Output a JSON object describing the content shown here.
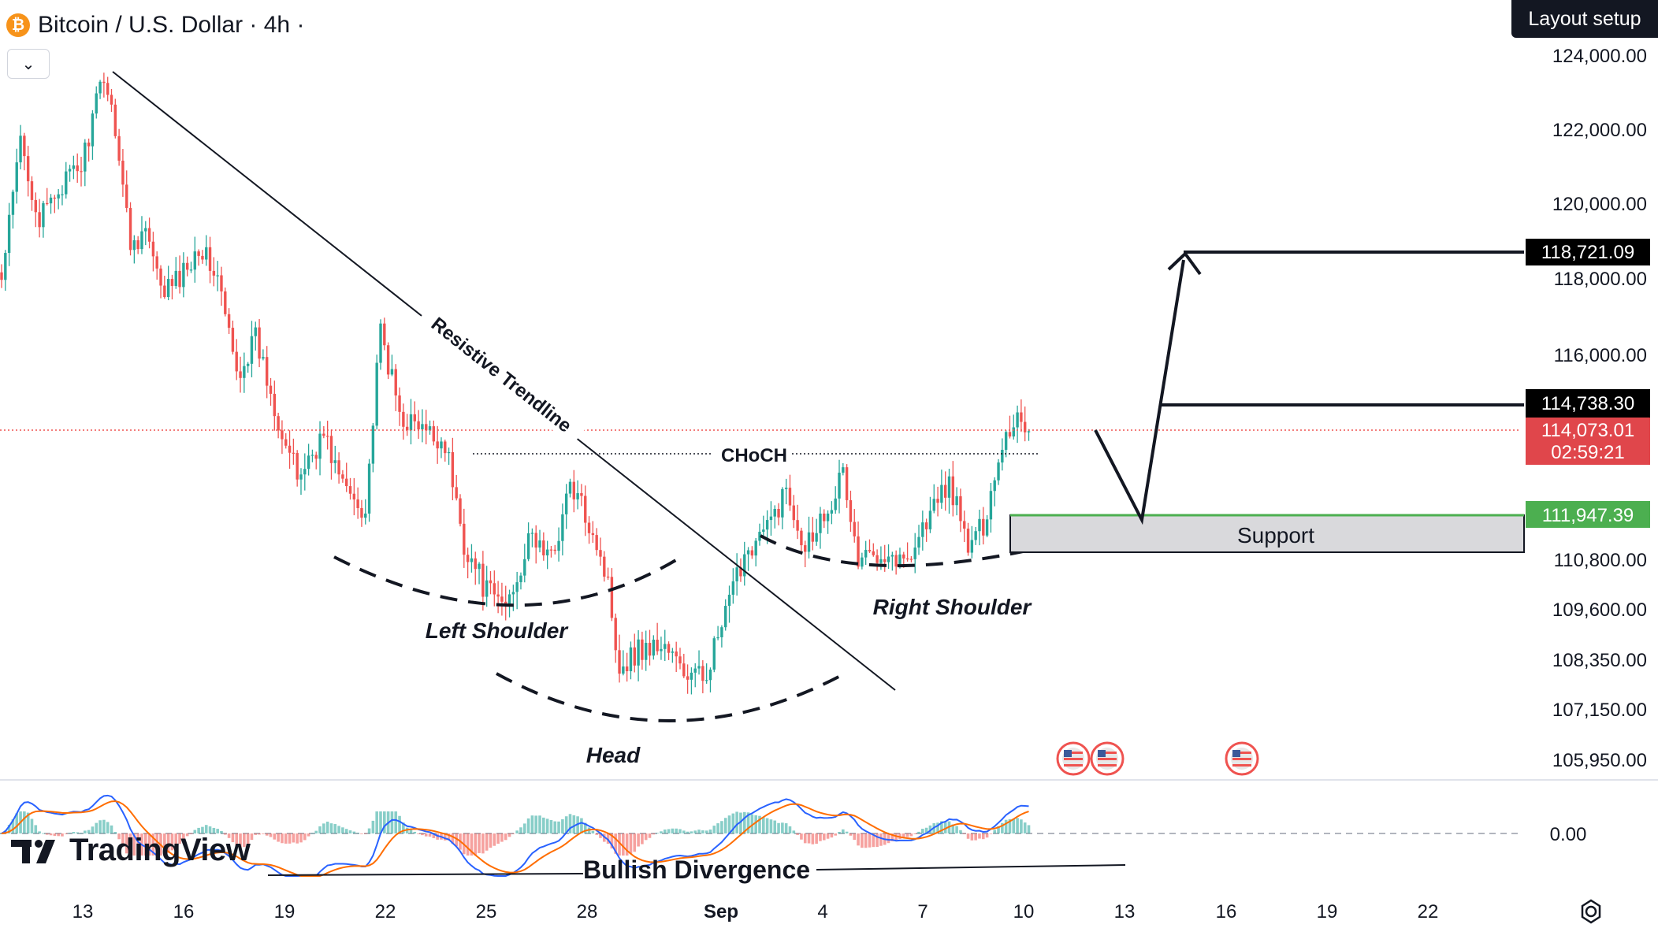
{
  "header": {
    "symbol_icon": "bitcoin-icon",
    "title": "Bitcoin / U.S. Dollar · 4h ·",
    "layout_button": "Layout setup",
    "collapse_icon": "chevron-down-icon"
  },
  "watermark": "TradingView",
  "colors": {
    "up": "#26a69a",
    "down": "#ef5350",
    "accent_green": "#4caf50",
    "support_fill": "#d9d9dc"
  },
  "chart_data": {
    "type": "candlestick",
    "interval": "4h",
    "price_axis": {
      "ticks": [
        124000,
        122000,
        120000,
        118000,
        116000,
        114738.3,
        110800,
        109600,
        108350,
        107150,
        105950
      ],
      "tick_labels": [
        "124,000.00",
        "122,000.00",
        "120,000.00",
        "118,000.00",
        "116,000.00",
        "110,800.00",
        "109,600.00",
        "108,350.00",
        "107,150.00",
        "105,950.00"
      ]
    },
    "price_labels": {
      "target": "118,721.09",
      "resistance": "114,738.30",
      "last_price": "114,073.01",
      "countdown": "02:59:21",
      "support": "111,947.39"
    },
    "time_axis": {
      "labels": [
        "13",
        "16",
        "19",
        "22",
        "25",
        "28",
        "Sep",
        "4",
        "7",
        "10",
        "13",
        "16",
        "19",
        "22"
      ],
      "bold_label": "Sep"
    },
    "annotations": {
      "trendline": "Resistive Trendline",
      "choch": "CHoCH",
      "left_shoulder": "Left Shoulder",
      "head": "Head",
      "right_shoulder": "Right Shoulder",
      "support": "Support",
      "divergence": "Bullish Divergence"
    },
    "anchors": [
      {
        "i": 0,
        "p": 117900
      },
      {
        "i": 5,
        "p": 121700
      },
      {
        "i": 10,
        "p": 119500
      },
      {
        "i": 15,
        "p": 120400
      },
      {
        "i": 21,
        "p": 121000
      },
      {
        "i": 27,
        "p": 123500
      },
      {
        "i": 30,
        "p": 122100
      },
      {
        "i": 34,
        "p": 118900
      },
      {
        "i": 38,
        "p": 119300
      },
      {
        "i": 42,
        "p": 117600
      },
      {
        "i": 47,
        "p": 118000
      },
      {
        "i": 52,
        "p": 118900
      },
      {
        "i": 57,
        "p": 118000
      },
      {
        "i": 62,
        "p": 115500
      },
      {
        "i": 67,
        "p": 116400
      },
      {
        "i": 73,
        "p": 114400
      },
      {
        "i": 78,
        "p": 112900
      },
      {
        "i": 85,
        "p": 114000
      },
      {
        "i": 90,
        "p": 112700
      },
      {
        "i": 96,
        "p": 112100
      },
      {
        "i": 100,
        "p": 116600
      },
      {
        "i": 105,
        "p": 114500
      },
      {
        "i": 112,
        "p": 114000
      },
      {
        "i": 117,
        "p": 113800
      },
      {
        "i": 122,
        "p": 111200
      },
      {
        "i": 128,
        "p": 110000
      },
      {
        "i": 133,
        "p": 109700
      },
      {
        "i": 140,
        "p": 111400
      },
      {
        "i": 145,
        "p": 110800
      },
      {
        "i": 150,
        "p": 112700
      },
      {
        "i": 156,
        "p": 111600
      },
      {
        "i": 160,
        "p": 110200
      },
      {
        "i": 163,
        "p": 108200
      },
      {
        "i": 168,
        "p": 108600
      },
      {
        "i": 175,
        "p": 108700
      },
      {
        "i": 180,
        "p": 108000
      },
      {
        "i": 185,
        "p": 107900
      },
      {
        "i": 190,
        "p": 109100
      },
      {
        "i": 196,
        "p": 111000
      },
      {
        "i": 202,
        "p": 111600
      },
      {
        "i": 207,
        "p": 112600
      },
      {
        "i": 212,
        "p": 111200
      },
      {
        "i": 218,
        "p": 112200
      },
      {
        "i": 222,
        "p": 113000
      },
      {
        "i": 226,
        "p": 110700
      },
      {
        "i": 232,
        "p": 111100
      },
      {
        "i": 238,
        "p": 110700
      },
      {
        "i": 244,
        "p": 111800
      },
      {
        "i": 250,
        "p": 112800
      },
      {
        "i": 255,
        "p": 111100
      },
      {
        "i": 259,
        "p": 111700
      },
      {
        "i": 264,
        "p": 113800
      },
      {
        "i": 268,
        "p": 114500
      },
      {
        "i": 271,
        "p": 114073.01
      }
    ],
    "macd": {
      "zero_label": "0.00"
    }
  }
}
